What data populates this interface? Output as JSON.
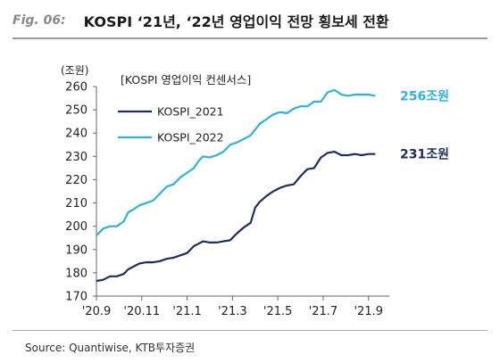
{
  "figure_label": "Fig. 06:",
  "title": "KOSPI ‘21년, ‘22년 영업이익 전망 횡보세 전환",
  "source": "Source: Quantiwise, KTB투자증권",
  "colors": {
    "kospi_2021": "#1b2f5e",
    "kospi_2022": "#2eb2e0",
    "axis": "#666666",
    "rule": "#9a9a9a"
  },
  "chart_data": {
    "type": "line",
    "unit_label": "(조원)",
    "legend_title": "[KOSPI 영업이익 컨센서스]",
    "ylim": [
      170,
      260
    ],
    "yticks": [
      170,
      180,
      190,
      200,
      210,
      220,
      230,
      240,
      250,
      260
    ],
    "xticks": [
      "'20.9",
      "'20.11",
      "'21.1",
      "'21.3",
      "'21.5",
      "'21.7",
      "'21.9"
    ],
    "x_range": [
      0,
      12.6
    ],
    "series": [
      {
        "name": "KOSPI_2021",
        "end_label": "231조원",
        "x": [
          0,
          0.3,
          0.6,
          0.9,
          1.2,
          1.4,
          1.6,
          1.9,
          2.2,
          2.5,
          2.8,
          3.1,
          3.4,
          3.7,
          4.0,
          4.3,
          4.5,
          4.7,
          5.0,
          5.3,
          5.6,
          5.9,
          6.2,
          6.5,
          6.8,
          7.0,
          7.2,
          7.5,
          7.8,
          8.1,
          8.4,
          8.7,
          9.0,
          9.3,
          9.6,
          9.9,
          10.2,
          10.5,
          10.8,
          11.1,
          11.4,
          11.7,
          12.0,
          12.3
        ],
        "values": [
          176.5,
          177,
          178.5,
          178.5,
          179.5,
          181.5,
          182.5,
          184,
          184.5,
          184.5,
          185,
          186,
          186.5,
          187.5,
          188.5,
          191.5,
          192.5,
          193.5,
          193,
          193,
          193.5,
          194,
          197,
          199.5,
          201.5,
          208,
          210.5,
          213,
          215,
          216.5,
          217.5,
          218,
          221.5,
          224.5,
          225,
          229.5,
          231.5,
          232,
          230.5,
          230.5,
          231,
          230.5,
          231,
          231
        ]
      },
      {
        "name": "KOSPI_2022",
        "end_label": "256조원",
        "x": [
          0,
          0.3,
          0.6,
          0.9,
          1.2,
          1.4,
          1.6,
          1.9,
          2.2,
          2.5,
          2.8,
          3.1,
          3.4,
          3.7,
          4.0,
          4.3,
          4.5,
          4.7,
          5.0,
          5.3,
          5.6,
          5.9,
          6.2,
          6.5,
          6.8,
          7.0,
          7.2,
          7.5,
          7.8,
          8.1,
          8.4,
          8.7,
          9.0,
          9.3,
          9.6,
          9.9,
          10.2,
          10.5,
          10.8,
          11.1,
          11.4,
          11.7,
          12.0,
          12.3
        ],
        "values": [
          196,
          199,
          200,
          200,
          202,
          206,
          207,
          209,
          210,
          211,
          214,
          217,
          218,
          221,
          223,
          225,
          228,
          230,
          229.5,
          230.5,
          232,
          235,
          236,
          237.5,
          239,
          241.5,
          244,
          246,
          248,
          249,
          248.5,
          250.5,
          251.5,
          251.5,
          253.5,
          253.5,
          257.5,
          258.5,
          256.5,
          256,
          256.5,
          256.5,
          256.5,
          256
        ]
      }
    ]
  }
}
